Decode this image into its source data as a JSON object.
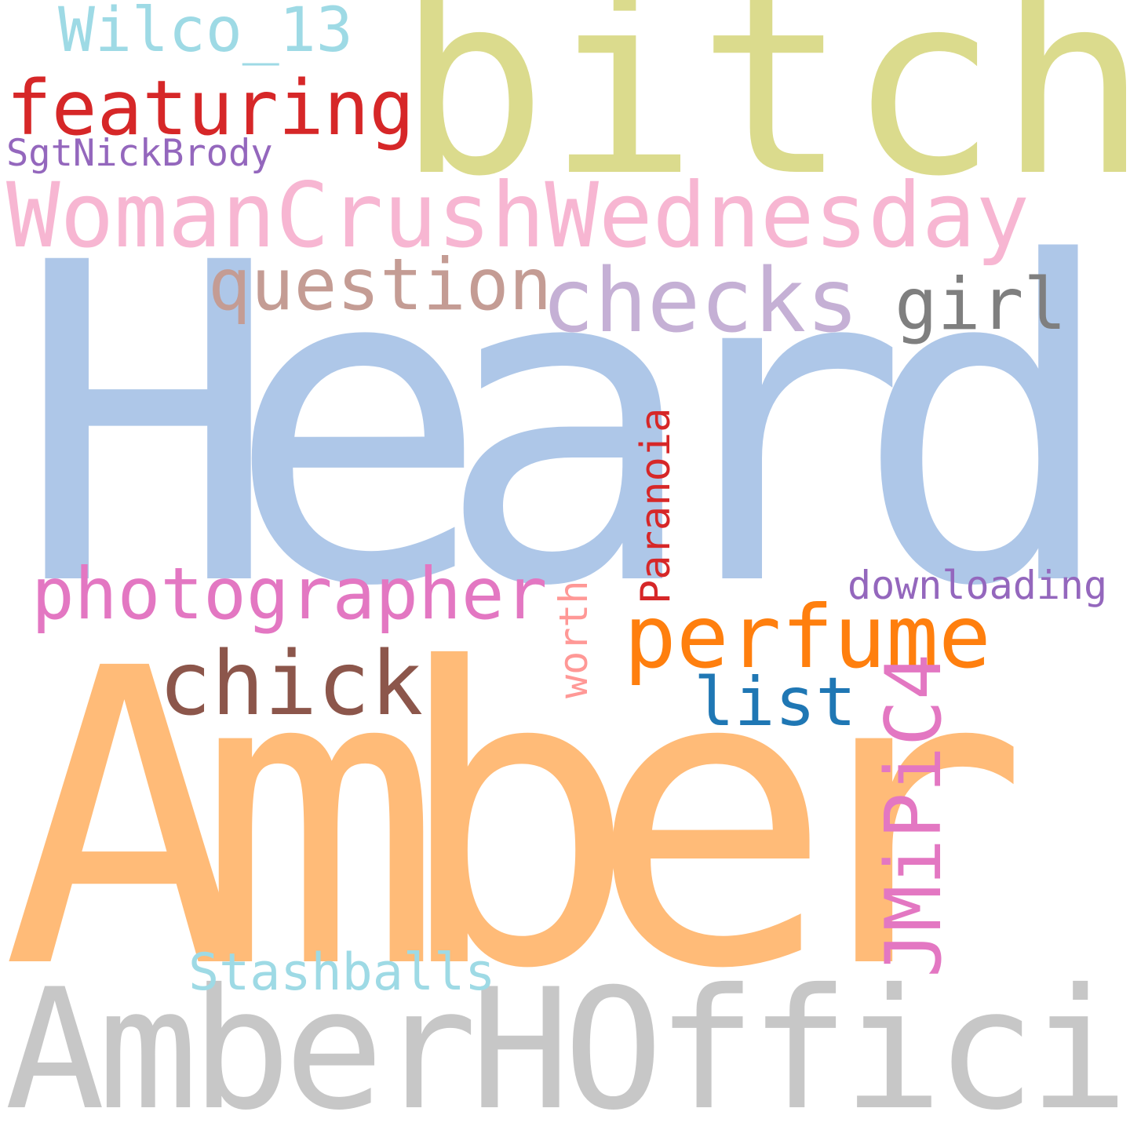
{
  "words": {
    "heard": {
      "text": "Heard",
      "color": "#aec7e8"
    },
    "amber": {
      "text": "Amber",
      "color": "#ffbb78"
    },
    "bitch": {
      "text": "bitch",
      "color": "#dbdb8d"
    },
    "amberhofficial": {
      "text": "AmberHOfficial",
      "color": "#c7c7c7"
    },
    "womancrushwednesday": {
      "text": "WomanCrushWednesday",
      "color": "#f7b6d2"
    },
    "checks": {
      "text": "checks",
      "color": "#c5b0d5"
    },
    "perfume": {
      "text": "perfume",
      "color": "#ff7f0e"
    },
    "chick": {
      "text": "chick",
      "color": "#8c564b"
    },
    "featuring": {
      "text": "featuring",
      "color": "#d62728"
    },
    "question": {
      "text": "question",
      "color": "#c49c94"
    },
    "photographer": {
      "text": "photographer",
      "color": "#e377c2"
    },
    "girl": {
      "text": "girl",
      "color": "#7f7f7f"
    },
    "list": {
      "text": "list",
      "color": "#1f77b4"
    },
    "wilco": {
      "text": "Wilco_13",
      "color": "#9edae5"
    },
    "stashballs": {
      "text": "Stashballs",
      "color": "#9edae5"
    },
    "sgtnickbrody": {
      "text": "SgtNickBrody",
      "color": "#9467bd"
    },
    "downloading": {
      "text": "downloading",
      "color": "#9467bd"
    },
    "jmipic4": {
      "text": "JMiPiC4",
      "color": "#e377c2"
    },
    "paranoia": {
      "text": "Paranoia",
      "color": "#d62728"
    },
    "worth": {
      "text": "worth",
      "color": "#ff9896"
    }
  }
}
